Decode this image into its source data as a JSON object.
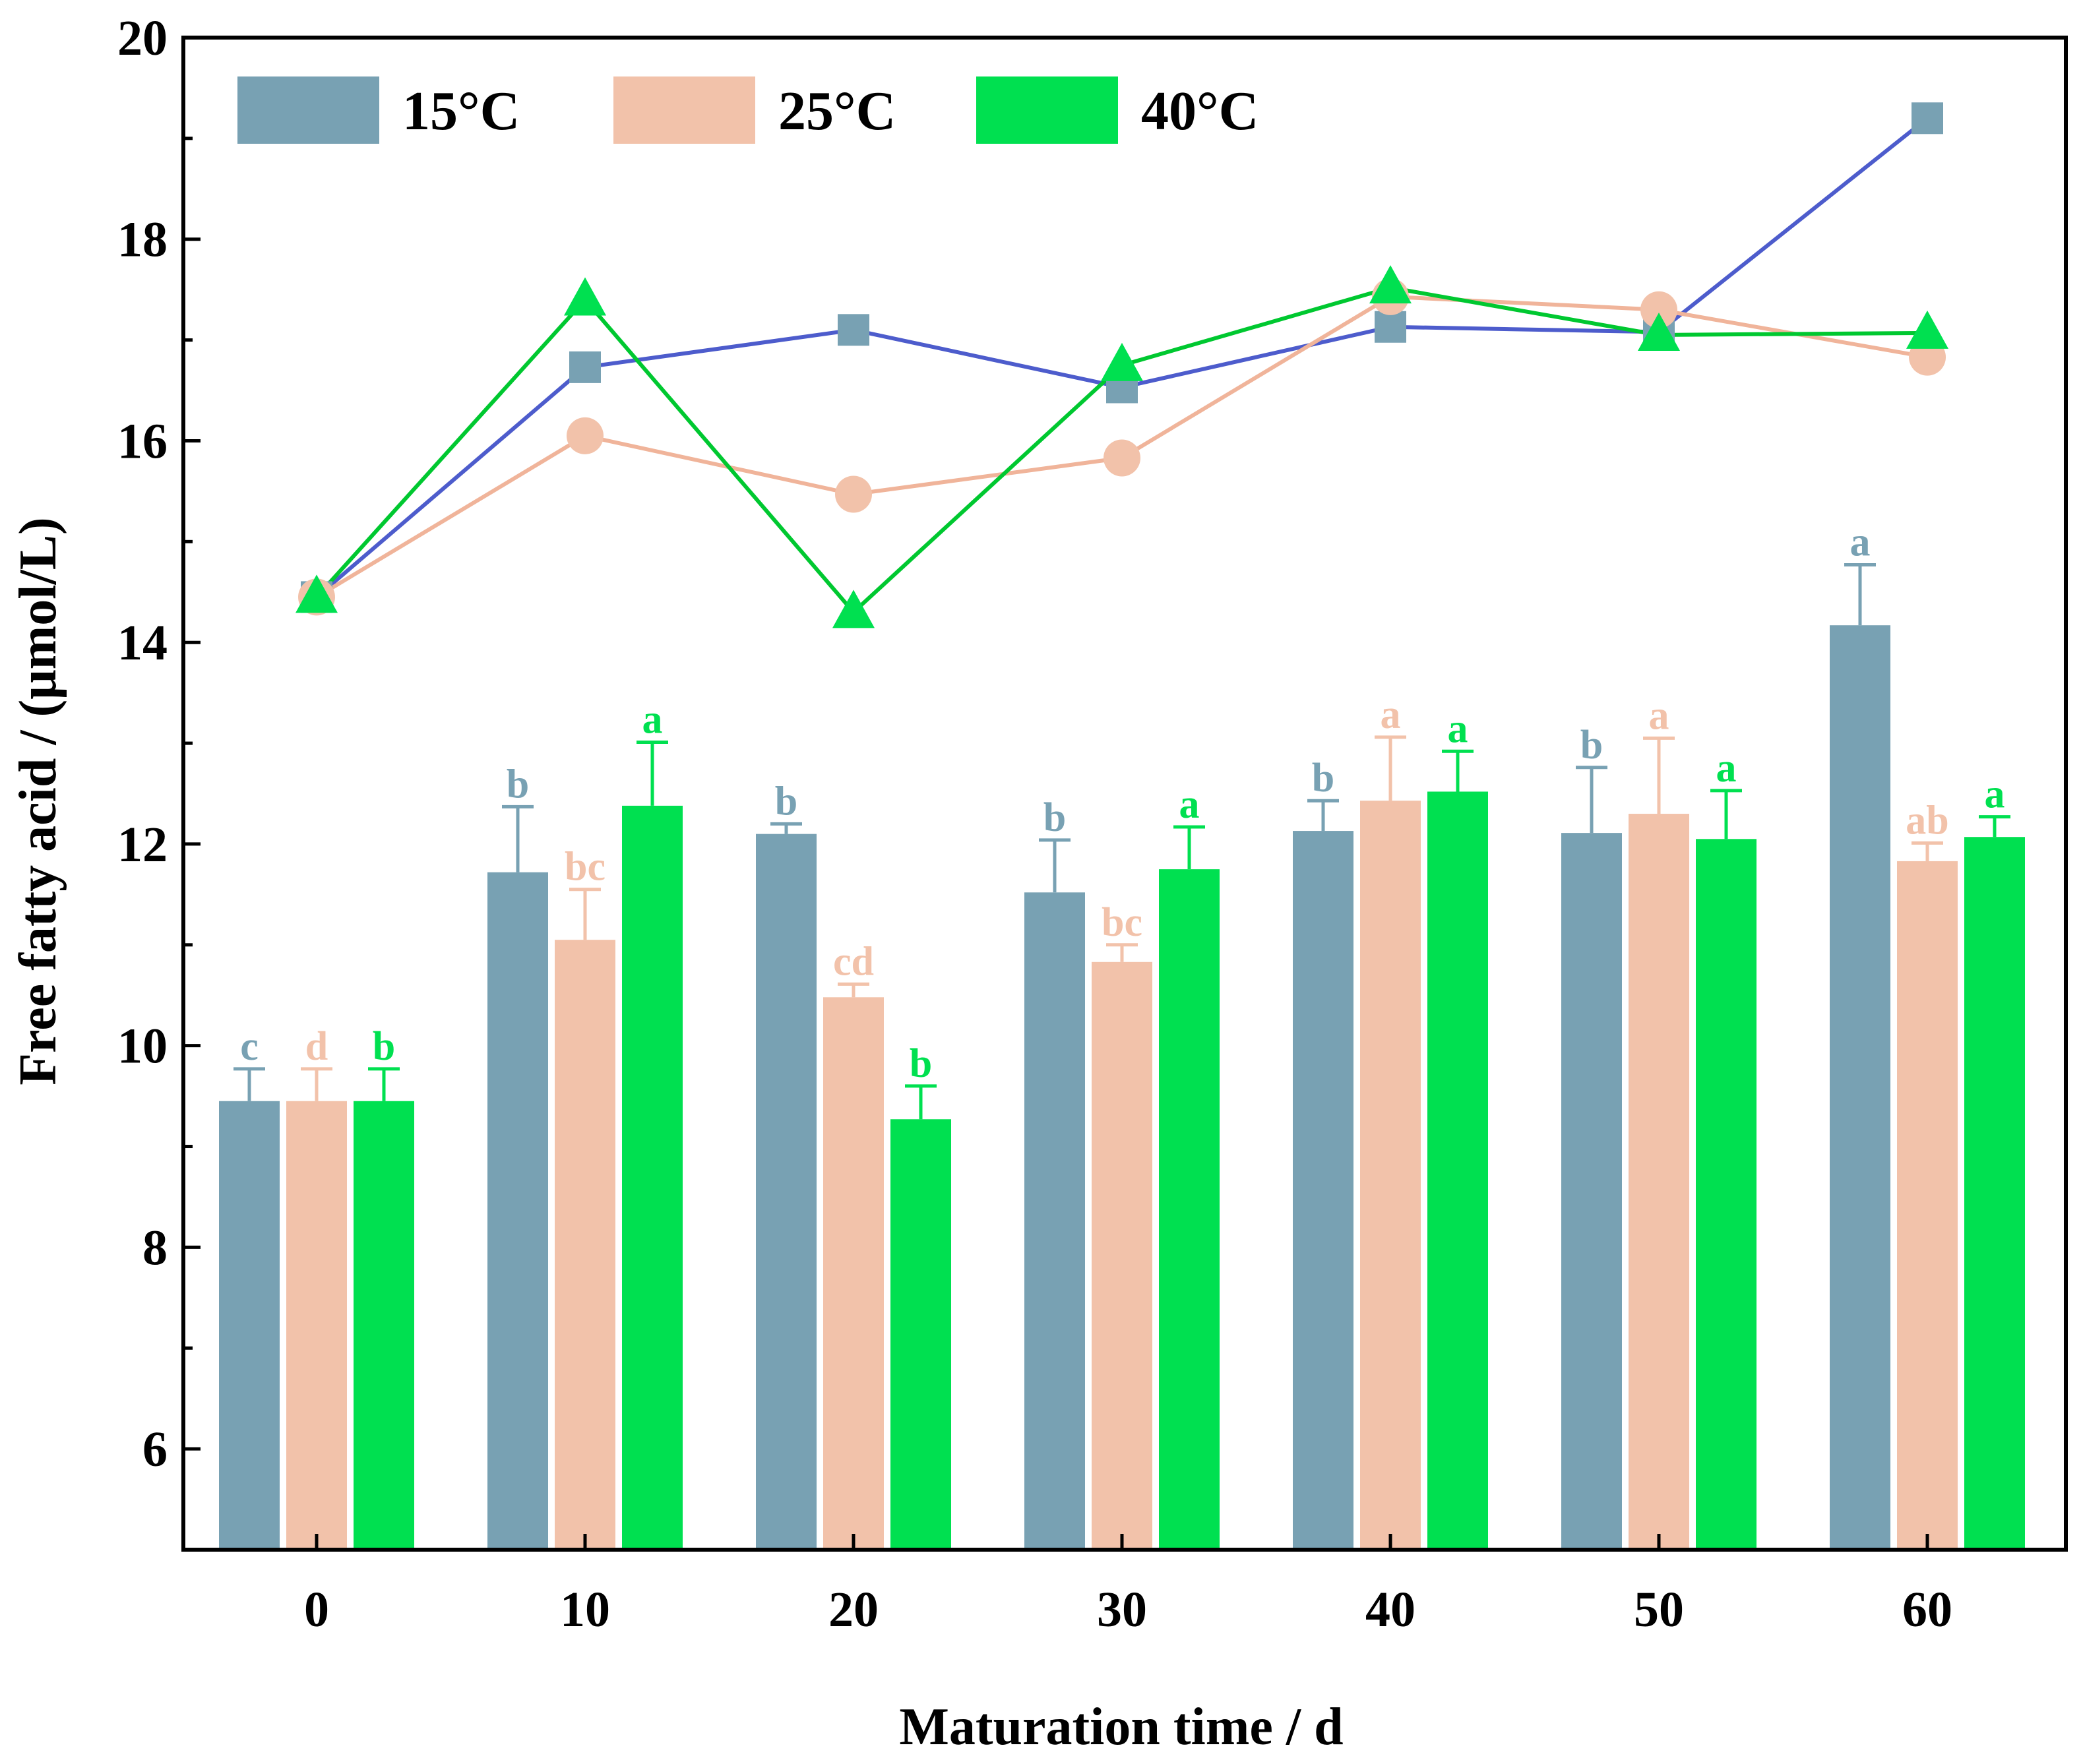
{
  "chart_data": {
    "type": "bar",
    "title": "",
    "xlabel": "Maturation time / d",
    "ylabel": "Free fatty acid / (μmol/L)",
    "ylim": [
      5,
      20
    ],
    "yticks": [
      "6",
      "8",
      "10",
      "12",
      "14",
      "16",
      "18",
      "20"
    ],
    "categories": [
      "0",
      "10",
      "20",
      "30",
      "40",
      "50",
      "60"
    ],
    "legend_position": "top-left",
    "grid": false,
    "series": [
      {
        "name": "15°C",
        "color": "#78a1b3",
        "line_color": "#4d5ccc",
        "marker": "square",
        "bar_values": [
          9.45,
          11.72,
          12.1,
          11.52,
          12.13,
          12.11,
          14.17
        ],
        "bar_errors": [
          0.32,
          0.65,
          0.1,
          0.52,
          0.3,
          0.65,
          0.6
        ],
        "significance": [
          "c",
          "b",
          "b",
          "b",
          "b",
          "b",
          "a"
        ],
        "line_values": [
          14.45,
          16.73,
          17.1,
          16.53,
          17.13,
          17.08,
          19.2
        ]
      },
      {
        "name": "25°C",
        "color": "#f2c2aa",
        "line_color": "#f0b49a",
        "marker": "circle",
        "bar_values": [
          9.45,
          11.05,
          10.48,
          10.83,
          12.43,
          12.3,
          11.83
        ],
        "bar_errors": [
          0.32,
          0.5,
          0.13,
          0.17,
          0.63,
          0.75,
          0.18
        ],
        "significance": [
          "d",
          "bc",
          "cd",
          "bc",
          "a",
          "a",
          "ab"
        ],
        "line_values": [
          14.45,
          16.05,
          15.47,
          15.83,
          17.43,
          17.3,
          16.83
        ]
      },
      {
        "name": "40°C",
        "color": "#00e050",
        "line_color": "#00c830",
        "marker": "triangle",
        "bar_values": [
          9.45,
          12.38,
          9.27,
          11.75,
          12.52,
          12.05,
          12.07
        ],
        "bar_errors": [
          0.32,
          0.63,
          0.33,
          0.42,
          0.4,
          0.48,
          0.2
        ],
        "significance": [
          "b",
          "a",
          "b",
          "a",
          "a",
          "a",
          "a"
        ],
        "line_values": [
          14.45,
          17.4,
          14.3,
          16.75,
          17.52,
          17.05,
          17.07
        ]
      }
    ]
  }
}
